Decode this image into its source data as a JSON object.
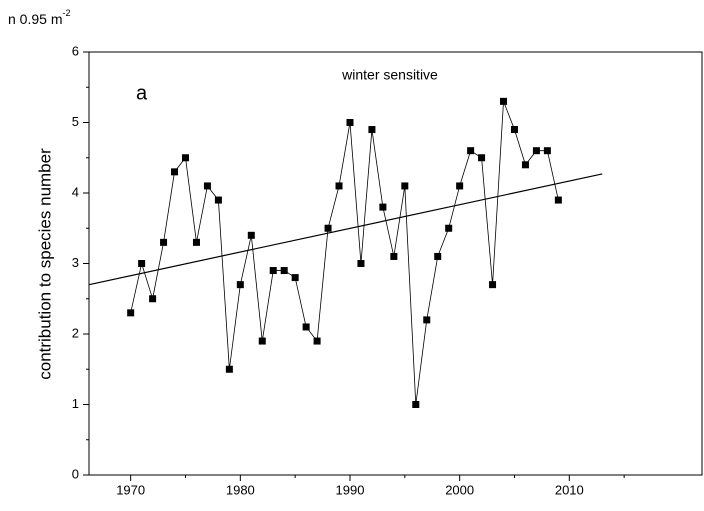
{
  "chart_data": {
    "type": "line",
    "unit_label": "n 0.95 m",
    "unit_label_sup": "-2",
    "title": "winter sensitive",
    "panel_label": "a",
    "y_label": "contribution to species number",
    "x": [
      1970,
      1971,
      1972,
      1973,
      1974,
      1975,
      1976,
      1977,
      1978,
      1979,
      1980,
      1981,
      1982,
      1983,
      1984,
      1985,
      1986,
      1987,
      1988,
      1989,
      1990,
      1991,
      1992,
      1993,
      1994,
      1995,
      1996,
      1997,
      1998,
      1999,
      2000,
      2001,
      2002,
      2003,
      2004,
      2005,
      2006,
      2007,
      2008,
      2009
    ],
    "series": [
      {
        "color": "#000000",
        "values": [
          2.3,
          3.0,
          2.5,
          3.3,
          4.3,
          4.5,
          3.3,
          4.1,
          3.9,
          1.5,
          2.7,
          3.4,
          1.9,
          2.9,
          2.9,
          2.8,
          2.1,
          1.9,
          3.5,
          4.1,
          5.0,
          3.0,
          4.9,
          3.8,
          3.1,
          4.1,
          1.0,
          2.2,
          3.1,
          3.5,
          4.1,
          4.6,
          4.5,
          2.7,
          5.3,
          4.9,
          4.4,
          4.6,
          4.6,
          3.9
        ]
      }
    ],
    "trend": {
      "color": "#000000",
      "x": [
        1966.2,
        2013
      ],
      "values": [
        2.7,
        4.27
      ]
    },
    "xlim": [
      1966.2,
      2022.1
    ],
    "ylim": [
      0,
      6
    ],
    "xticks": [
      1970,
      1980,
      1990,
      2000,
      2010
    ],
    "yticks": [
      0,
      1,
      2,
      3,
      4,
      5,
      6
    ],
    "xminorticks": [
      1975,
      1985,
      1995,
      2005,
      2015
    ],
    "yminorticks": [
      0.5,
      1.5,
      2.5,
      3.5,
      4.5,
      5.5
    ],
    "grid": false
  }
}
